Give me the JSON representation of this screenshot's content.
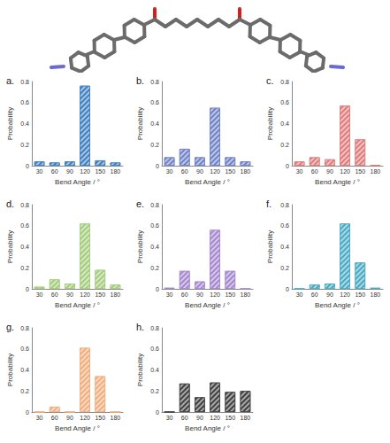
{
  "chart_data": [
    {
      "type": "bar",
      "title": "a.",
      "x_label": "Bend Angle / °",
      "y_label": "Probability",
      "categories": [
        "30",
        "60",
        "90",
        "120",
        "150",
        "180"
      ],
      "values": [
        0.04,
        0.03,
        0.04,
        0.76,
        0.05,
        0.03
      ],
      "color": "#3f7fc0",
      "ylim": [
        0,
        0.8
      ],
      "yticks": [
        0,
        0.2,
        0.4,
        0.6,
        0.8
      ],
      "grid": false
    },
    {
      "type": "bar",
      "title": "b.",
      "x_label": "Bend Angle / °",
      "y_label": "Probability",
      "categories": [
        "30",
        "60",
        "90",
        "120",
        "150",
        "180"
      ],
      "values": [
        0.08,
        0.16,
        0.08,
        0.55,
        0.08,
        0.04
      ],
      "color": "#6f82c8",
      "ylim": [
        0,
        0.8
      ],
      "yticks": [
        0,
        0.2,
        0.4,
        0.6,
        0.8
      ],
      "grid": false
    },
    {
      "type": "bar",
      "title": "c.",
      "x_label": "Bend Angle / °",
      "y_label": "Probability",
      "categories": [
        "30",
        "60",
        "90",
        "120",
        "150",
        "180"
      ],
      "values": [
        0.04,
        0.08,
        0.06,
        0.57,
        0.25,
        0.005
      ],
      "color": "#e07b7b",
      "ylim": [
        0,
        0.8
      ],
      "yticks": [
        0,
        0.2,
        0.4,
        0.6,
        0.8
      ],
      "grid": false
    },
    {
      "type": "bar",
      "title": "d.",
      "x_label": "Bend Angle / °",
      "y_label": "Probability",
      "categories": [
        "30",
        "60",
        "90",
        "120",
        "150",
        "180"
      ],
      "values": [
        0.02,
        0.09,
        0.05,
        0.62,
        0.18,
        0.04
      ],
      "color": "#a4cc7c",
      "ylim": [
        0,
        0.8
      ],
      "yticks": [
        0,
        0.2,
        0.4,
        0.6,
        0.8
      ],
      "grid": false
    },
    {
      "type": "bar",
      "title": "e.",
      "x_label": "Bend Angle / °",
      "y_label": "Probability",
      "categories": [
        "30",
        "60",
        "90",
        "120",
        "150",
        "180"
      ],
      "values": [
        0.01,
        0.17,
        0.07,
        0.56,
        0.17,
        0.0
      ],
      "color": "#a487cf",
      "ylim": [
        0,
        0.8
      ],
      "yticks": [
        0,
        0.2,
        0.4,
        0.6,
        0.8
      ],
      "grid": false
    },
    {
      "type": "bar",
      "title": "f.",
      "x_label": "Bend Angle / °",
      "y_label": "Probability",
      "categories": [
        "30",
        "60",
        "90",
        "120",
        "150",
        "180"
      ],
      "values": [
        0.0,
        0.04,
        0.05,
        0.62,
        0.25,
        0.01
      ],
      "color": "#47aac4",
      "ylim": [
        0,
        0.8
      ],
      "yticks": [
        0,
        0.2,
        0.4,
        0.6,
        0.8
      ],
      "grid": false
    },
    {
      "type": "bar",
      "title": "g.",
      "x_label": "Bend Angle / °",
      "y_label": "Probability",
      "categories": [
        "30",
        "60",
        "90",
        "120",
        "150",
        "180"
      ],
      "values": [
        0.0,
        0.05,
        0.0,
        0.61,
        0.34,
        0.0
      ],
      "color": "#f2ad7c",
      "ylim": [
        0,
        0.8
      ],
      "yticks": [
        0,
        0.2,
        0.4,
        0.6,
        0.8
      ],
      "grid": false
    },
    {
      "type": "bar",
      "title": "h.",
      "x_label": "Bend Angle / °",
      "y_label": "Probability",
      "categories": [
        "30",
        "60",
        "90",
        "120",
        "150",
        "180"
      ],
      "values": [
        0.0,
        0.27,
        0.14,
        0.28,
        0.19,
        0.2
      ],
      "color": "#404040",
      "ylim": [
        0,
        0.8
      ],
      "yticks": [
        0,
        0.2,
        0.4,
        0.6,
        0.8
      ],
      "grid": false
    }
  ]
}
